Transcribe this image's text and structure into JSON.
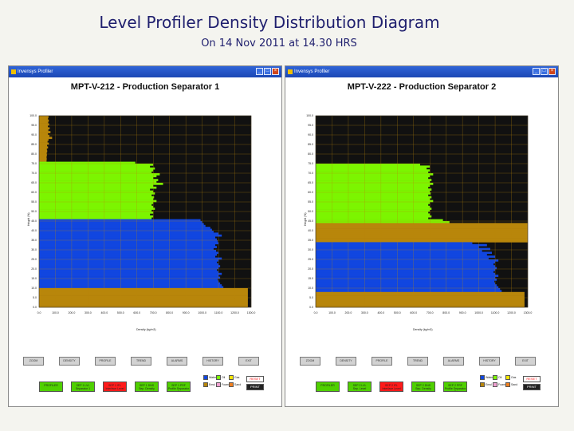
{
  "slide": {
    "title": "Level Profiler Density Distribution Diagram",
    "subtitle": "On 14 Nov 2011 at 14.30 HRS"
  },
  "colors": {
    "oil": "#7cf500",
    "water": "#1146e0",
    "gas": "#111111",
    "emulsion": "#b8860b",
    "titlebar": "#1b47b4",
    "gridline": "#b8860b",
    "red_button": "#ff1a1a"
  },
  "windows": [
    {
      "titlebar": "Invensys Profiler",
      "separator_title": "MPT-V-212 - Production Separator 1",
      "y_axis_label": "Height (%)",
      "x_axis_label": "Density (kg/m3)",
      "y_ticks": [
        "100.0",
        "95.0",
        "90.0",
        "85.0",
        "80.0",
        "75.0",
        "70.0",
        "65.0",
        "60.0",
        "55.0",
        "50.0",
        "45.0",
        "40.0",
        "35.0",
        "30.0",
        "25.0",
        "20.0",
        "15.0",
        "10.0",
        "5.0",
        "0.0"
      ],
      "x_ticks": [
        "0.0",
        "100.0",
        "200.0",
        "300.0",
        "400.0",
        "500.0",
        "600.0",
        "700.0",
        "800.0",
        "900.0",
        "1000.0",
        "1100.0",
        "1200.0",
        "1300.0"
      ],
      "profile": [
        [
          100,
          58
        ],
        [
          99,
          55
        ],
        [
          98,
          60
        ],
        [
          97,
          56
        ],
        [
          96,
          62
        ],
        [
          95,
          54
        ],
        [
          94,
          65
        ],
        [
          93,
          57
        ],
        [
          92,
          70
        ],
        [
          91,
          55
        ],
        [
          90,
          63
        ],
        [
          89,
          80
        ],
        [
          88,
          58
        ],
        [
          87,
          52
        ],
        [
          86,
          60
        ],
        [
          85,
          49
        ],
        [
          84,
          55
        ],
        [
          83,
          48
        ],
        [
          82,
          50
        ],
        [
          81,
          47
        ],
        [
          80,
          48
        ],
        [
          79,
          46
        ],
        [
          78,
          47
        ],
        [
          77,
          46
        ],
        [
          76,
          590
        ],
        [
          75,
          700
        ],
        [
          74,
          680
        ],
        [
          73,
          710
        ],
        [
          72,
          700
        ],
        [
          71,
          690
        ],
        [
          70,
          740
        ],
        [
          69,
          720
        ],
        [
          68,
          700
        ],
        [
          67,
          730
        ],
        [
          66,
          720
        ],
        [
          65,
          760
        ],
        [
          64,
          700
        ],
        [
          63,
          720
        ],
        [
          62,
          680
        ],
        [
          61,
          700
        ],
        [
          60,
          710
        ],
        [
          59,
          690
        ],
        [
          58,
          705
        ],
        [
          57,
          700
        ],
        [
          56,
          720
        ],
        [
          55,
          700
        ],
        [
          54,
          690
        ],
        [
          53,
          700
        ],
        [
          52,
          710
        ],
        [
          51,
          690
        ],
        [
          50,
          700
        ],
        [
          49,
          680
        ],
        [
          48,
          700
        ],
        [
          47,
          690
        ],
        [
          46,
          990
        ],
        [
          45,
          1000
        ],
        [
          44,
          1010
        ],
        [
          43,
          1020
        ],
        [
          42,
          1050
        ],
        [
          41,
          1060
        ],
        [
          40,
          1070
        ],
        [
          39,
          1100
        ],
        [
          38,
          1120
        ],
        [
          37,
          1080
        ],
        [
          36,
          1090
        ],
        [
          35,
          1095
        ],
        [
          34,
          1100
        ],
        [
          33,
          1080
        ],
        [
          32,
          1090
        ],
        [
          31,
          1070
        ],
        [
          30,
          1085
        ],
        [
          29,
          1100
        ],
        [
          28,
          1090
        ],
        [
          27,
          1080
        ],
        [
          26,
          1120
        ],
        [
          25,
          1100
        ],
        [
          24,
          1090
        ],
        [
          23,
          1100
        ],
        [
          22,
          1110
        ],
        [
          21,
          1100
        ],
        [
          20,
          1090
        ],
        [
          19,
          1100
        ],
        [
          18,
          1120
        ],
        [
          17,
          1100
        ],
        [
          16,
          1110
        ],
        [
          15,
          1095
        ],
        [
          14,
          1100
        ],
        [
          13,
          1110
        ],
        [
          12,
          1120
        ],
        [
          11,
          1130
        ],
        [
          10,
          1280
        ],
        [
          9,
          1280
        ],
        [
          8,
          1280
        ],
        [
          7,
          1280
        ],
        [
          6,
          1280
        ],
        [
          5,
          1280
        ],
        [
          4,
          1280
        ],
        [
          3,
          1280
        ],
        [
          2,
          1280
        ],
        [
          1,
          1280
        ]
      ],
      "nav_buttons": [
        "ZOOM",
        "DENSITY",
        "PROFILE",
        "TREND",
        "ALARMS",
        "HISTORY",
        "EXIT"
      ],
      "controls": [
        {
          "label": "PROFILER",
          "sub": "",
          "color": "#4fd000"
        },
        {
          "label": "SEP 1 LVL",
          "sub": "Separator 1",
          "color": "#4fd000"
        },
        {
          "label": "SEP 1 IFL",
          "sub": "Interface Level",
          "color": "#ff1a1a"
        },
        {
          "label": "SEP 1 DNS",
          "sub": "Sep. Density",
          "color": "#4fd000"
        },
        {
          "label": "SEP 1 PRF",
          "sub": "Profile Separator 1",
          "color": "#4fd000"
        }
      ],
      "legend": [
        {
          "label": "Water",
          "color": "#1146e0"
        },
        {
          "label": "Oil",
          "color": "#7cf500"
        },
        {
          "label": "Gas",
          "color": "#f5e600"
        },
        {
          "label": "Emul",
          "color": "#b8860b"
        },
        {
          "label": "Foam",
          "color": "#f0a0d0"
        },
        {
          "label": "Sand",
          "color": "#f08020"
        }
      ],
      "hide_buttons": [
        "RESET",
        "PRINT"
      ]
    },
    {
      "titlebar": "Invensys Profiler",
      "separator_title": "MPT-V-222 - Production Separator 2",
      "y_axis_label": "Height (%)",
      "x_axis_label": "Density (kg/m3)",
      "y_ticks": [
        "100.0",
        "95.0",
        "90.0",
        "85.0",
        "80.0",
        "75.0",
        "70.0",
        "65.0",
        "60.0",
        "55.0",
        "50.0",
        "45.0",
        "40.0",
        "35.0",
        "30.0",
        "25.0",
        "20.0",
        "15.0",
        "10.0",
        "5.0",
        "0.0"
      ],
      "x_ticks": [
        "0.0",
        "100.0",
        "200.0",
        "300.0",
        "400.0",
        "500.0",
        "600.0",
        "700.0",
        "800.0",
        "900.0",
        "1000.0",
        "1100.0",
        "1200.0",
        "1300.0"
      ],
      "profile": [
        [
          100,
          0
        ],
        [
          99,
          0
        ],
        [
          98,
          0
        ],
        [
          97,
          0
        ],
        [
          96,
          0
        ],
        [
          95,
          0
        ],
        [
          94,
          0
        ],
        [
          93,
          0
        ],
        [
          92,
          0
        ],
        [
          91,
          0
        ],
        [
          90,
          0
        ],
        [
          89,
          0
        ],
        [
          88,
          0
        ],
        [
          87,
          0
        ],
        [
          86,
          0
        ],
        [
          85,
          0
        ],
        [
          84,
          0
        ],
        [
          83,
          0
        ],
        [
          82,
          0
        ],
        [
          81,
          0
        ],
        [
          80,
          0
        ],
        [
          79,
          0
        ],
        [
          78,
          0
        ],
        [
          77,
          0
        ],
        [
          76,
          0
        ],
        [
          75,
          640
        ],
        [
          74,
          700
        ],
        [
          73,
          680
        ],
        [
          72,
          700
        ],
        [
          71,
          690
        ],
        [
          70,
          720
        ],
        [
          69,
          700
        ],
        [
          68,
          690
        ],
        [
          67,
          710
        ],
        [
          66,
          700
        ],
        [
          65,
          720
        ],
        [
          64,
          700
        ],
        [
          63,
          690
        ],
        [
          62,
          710
        ],
        [
          61,
          700
        ],
        [
          60,
          705
        ],
        [
          59,
          690
        ],
        [
          58,
          710
        ],
        [
          57,
          700
        ],
        [
          56,
          720
        ],
        [
          55,
          700
        ],
        [
          54,
          690
        ],
        [
          53,
          700
        ],
        [
          52,
          710
        ],
        [
          51,
          700
        ],
        [
          50,
          690
        ],
        [
          49,
          700
        ],
        [
          48,
          710
        ],
        [
          47,
          690
        ],
        [
          46,
          780
        ],
        [
          45,
          820
        ],
        [
          44,
          1300
        ],
        [
          43,
          1300
        ],
        [
          42,
          1300
        ],
        [
          41,
          1300
        ],
        [
          40,
          1300
        ],
        [
          39,
          1300
        ],
        [
          38,
          1300
        ],
        [
          37,
          1300
        ],
        [
          36,
          1300
        ],
        [
          35,
          1300
        ],
        [
          34,
          960
        ],
        [
          33,
          1050
        ],
        [
          32,
          1000
        ],
        [
          31,
          1070
        ],
        [
          30,
          1020
        ],
        [
          29,
          1080
        ],
        [
          28,
          1050
        ],
        [
          27,
          1100
        ],
        [
          26,
          1060
        ],
        [
          25,
          1120
        ],
        [
          24,
          1100
        ],
        [
          23,
          1090
        ],
        [
          22,
          1100
        ],
        [
          21,
          1110
        ],
        [
          20,
          1100
        ],
        [
          19,
          1090
        ],
        [
          18,
          1100
        ],
        [
          17,
          1120
        ],
        [
          16,
          1100
        ],
        [
          15,
          1110
        ],
        [
          14,
          1095
        ],
        [
          13,
          1100
        ],
        [
          12,
          1110
        ],
        [
          11,
          1120
        ],
        [
          10,
          1130
        ],
        [
          9,
          1140
        ],
        [
          8,
          1280
        ],
        [
          7,
          1280
        ],
        [
          6,
          1280
        ],
        [
          5,
          1280
        ],
        [
          4,
          1280
        ],
        [
          3,
          1280
        ],
        [
          2,
          1280
        ],
        [
          1,
          1280
        ]
      ],
      "nav_buttons": [
        "ZOOM",
        "DENSITY",
        "PROFILE",
        "TREND",
        "ALARMS",
        "HISTORY",
        "EXIT"
      ],
      "controls": [
        {
          "label": "PROFILER",
          "sub": "",
          "color": "#4fd000"
        },
        {
          "label": "SEP 2 LVL",
          "sub": "Sep. Level",
          "color": "#4fd000"
        },
        {
          "label": "SEP 2 IFL",
          "sub": "Interface Level",
          "color": "#ff1a1a"
        },
        {
          "label": "SEP 2 DNS",
          "sub": "Sep. Density",
          "color": "#4fd000"
        },
        {
          "label": "SEP 2 PRF",
          "sub": "Profile Separator 2",
          "color": "#4fd000"
        }
      ],
      "legend": [
        {
          "label": "Water",
          "color": "#1146e0"
        },
        {
          "label": "Oil",
          "color": "#7cf500"
        },
        {
          "label": "Gas",
          "color": "#f5e600"
        },
        {
          "label": "Emul",
          "color": "#b8860b"
        },
        {
          "label": "Foam",
          "color": "#f0a0d0"
        },
        {
          "label": "Sand",
          "color": "#f08020"
        }
      ],
      "hide_buttons": [
        "RESET",
        "PRINT"
      ]
    }
  ]
}
